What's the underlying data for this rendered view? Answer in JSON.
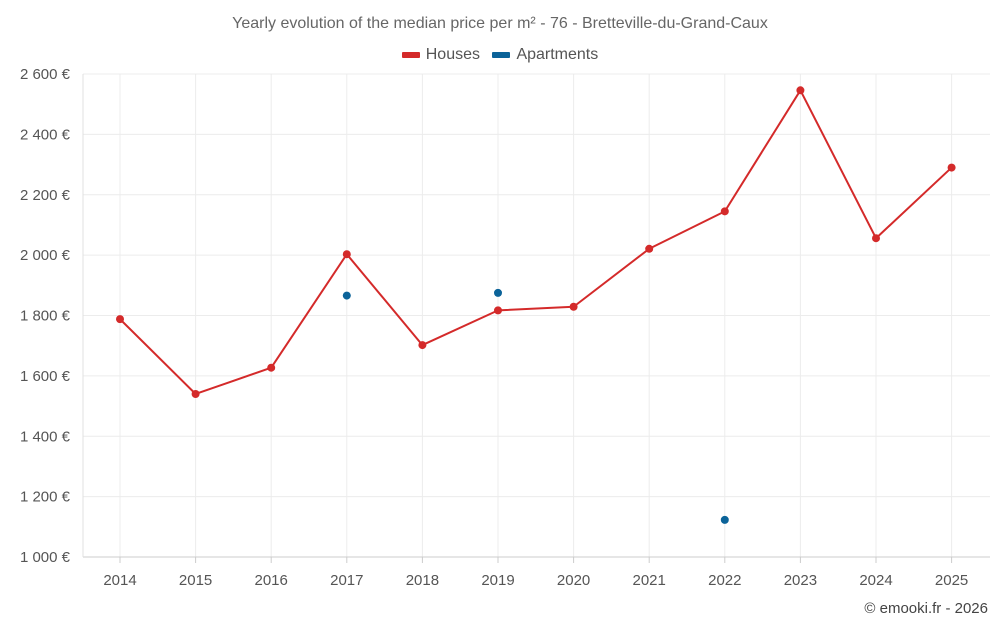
{
  "chart_data": {
    "type": "line",
    "title": "Yearly evolution of the median price per m² - 76 - Bretteville-du-Grand-Caux",
    "xlabel": "",
    "ylabel": "",
    "categories": [
      "2014",
      "2015",
      "2016",
      "2017",
      "2018",
      "2019",
      "2020",
      "2021",
      "2022",
      "2023",
      "2024",
      "2025"
    ],
    "ylim": [
      1000,
      2600
    ],
    "yticks": [
      1000,
      1200,
      1400,
      1600,
      1800,
      2000,
      2200,
      2400,
      2600
    ],
    "ytick_labels": [
      "1 000 €",
      "1 200 €",
      "1 400 €",
      "1 600 €",
      "1 800 €",
      "2 000 €",
      "2 200 €",
      "2 400 €",
      "2 600 €"
    ],
    "grid": true,
    "legend_position": "top-center",
    "series": [
      {
        "name": "Houses",
        "color": "#d42a2a",
        "style": "line-markers",
        "values": [
          1788,
          1540,
          1627,
          2003,
          1702,
          1817,
          1829,
          2021,
          2145,
          2546,
          2056,
          2290
        ]
      },
      {
        "name": "Apartments",
        "color": "#0b6399",
        "style": "markers",
        "values": [
          null,
          null,
          null,
          1866,
          null,
          1875,
          null,
          null,
          1123,
          null,
          null,
          null
        ]
      }
    ]
  },
  "legend": {
    "houses_label": "Houses",
    "apartments_label": "Apartments"
  },
  "credit": "© emooki.fr - 2026"
}
